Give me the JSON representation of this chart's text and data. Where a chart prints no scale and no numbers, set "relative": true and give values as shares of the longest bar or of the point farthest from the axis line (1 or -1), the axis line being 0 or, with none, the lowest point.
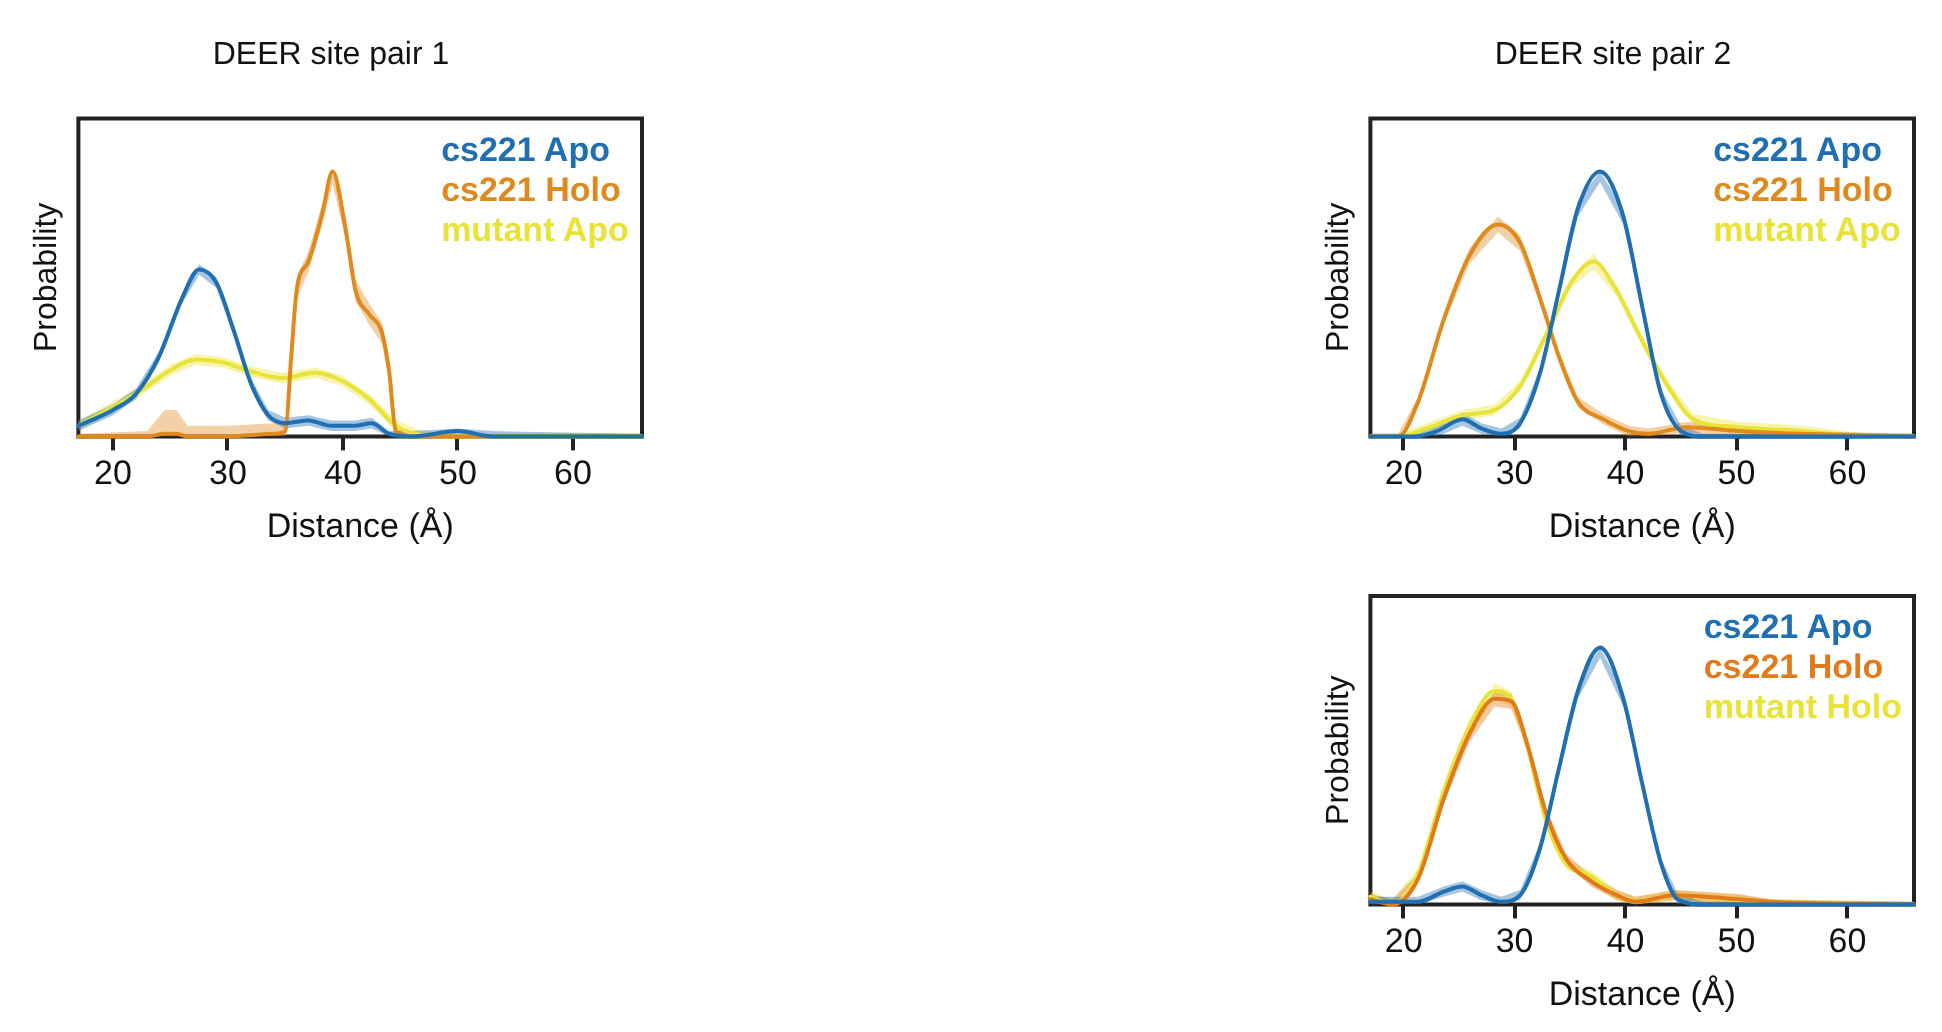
{
  "chart_data": [
    {
      "type": "line",
      "title": "DEER site pair 1",
      "xlabel": "Distance (Å)",
      "ylabel": "Probability",
      "relative": true,
      "xlim": [
        17,
        66
      ],
      "xticks": [
        20,
        30,
        40,
        50,
        60
      ],
      "grid": false,
      "legend": "top right",
      "marker": "none",
      "line_style": "solid",
      "series": [
        {
          "name": "cs221 Apo",
          "color": "#1f6fb2",
          "x": [
            17,
            20,
            22,
            24,
            26,
            27.5,
            29,
            30.5,
            32,
            33.5,
            35,
            37,
            39,
            41,
            42.5,
            44,
            46,
            50,
            53,
            66
          ],
          "values": [
            0.04,
            0.1,
            0.16,
            0.3,
            0.52,
            0.63,
            0.58,
            0.4,
            0.2,
            0.08,
            0.05,
            0.06,
            0.04,
            0.04,
            0.05,
            0.01,
            0,
            0.02,
            0,
            0
          ],
          "lower": [
            0.02,
            0.08,
            0.14,
            0.28,
            0.5,
            0.61,
            0.56,
            0.38,
            0.18,
            0.06,
            0.03,
            0.04,
            0.02,
            0.02,
            0.03,
            0,
            0,
            0.01,
            0,
            0
          ],
          "upper": [
            0.06,
            0.12,
            0.18,
            0.32,
            0.54,
            0.65,
            0.6,
            0.42,
            0.22,
            0.1,
            0.07,
            0.08,
            0.06,
            0.06,
            0.07,
            0.02,
            0.02,
            0.03,
            0.02,
            0.01
          ]
        },
        {
          "name": "cs221 Holo",
          "color": "#e08a1e",
          "x": [
            17,
            23,
            24.5,
            25.5,
            26.5,
            30,
            34,
            35,
            35.5,
            36,
            37,
            38.2,
            39.1,
            40.2,
            41.1,
            42.3,
            43.4,
            44,
            44.6,
            46,
            66
          ],
          "values": [
            0,
            0,
            0.01,
            0.01,
            0,
            0,
            0.01,
            0.02,
            0.3,
            0.56,
            0.66,
            0.84,
            1,
            0.79,
            0.55,
            0.46,
            0.39,
            0.25,
            0.02,
            0,
            0
          ],
          "lower": [
            0,
            0,
            0,
            0,
            0,
            0,
            0,
            0,
            0.26,
            0.52,
            0.62,
            0.8,
            0.95,
            0.75,
            0.51,
            0.42,
            0.35,
            0.21,
            0,
            0,
            0
          ],
          "upper": [
            0.01,
            0.02,
            0.1,
            0.1,
            0.04,
            0.04,
            0.05,
            0.05,
            0.34,
            0.6,
            0.7,
            0.88,
            1,
            0.83,
            0.59,
            0.5,
            0.43,
            0.29,
            0.04,
            0.01,
            0.01
          ]
        },
        {
          "name": "mutant Apo",
          "color": "#e8e337",
          "x": [
            17,
            22,
            25,
            27.2,
            29.5,
            32.4,
            34.7,
            37.6,
            39.9,
            42.3,
            44.6,
            46.3,
            48,
            66
          ],
          "values": [
            0.04,
            0.16,
            0.25,
            0.29,
            0.28,
            0.24,
            0.22,
            0.24,
            0.21,
            0.14,
            0.04,
            0.01,
            0,
            0
          ],
          "lower": [
            0.02,
            0.14,
            0.23,
            0.27,
            0.26,
            0.22,
            0.2,
            0.22,
            0.19,
            0.12,
            0.02,
            0,
            0,
            0
          ],
          "upper": [
            0.06,
            0.18,
            0.27,
            0.31,
            0.3,
            0.26,
            0.24,
            0.26,
            0.23,
            0.16,
            0.06,
            0.03,
            0.01,
            0.01
          ]
        }
      ]
    },
    {
      "type": "line",
      "title": "DEER site pair 2",
      "xlabel": "Distance (Å)",
      "ylabel": "Probability",
      "relative": true,
      "xlim": [
        17,
        66
      ],
      "xticks": [
        20,
        30,
        40,
        50,
        60
      ],
      "grid": false,
      "legend": "top right",
      "marker": "none",
      "line_style": "solid",
      "series": [
        {
          "name": "cs221 Apo",
          "color": "#1f6fb2",
          "x": [
            17,
            21,
            23,
            25.3,
            27,
            28.8,
            30.5,
            32.3,
            34,
            35.7,
            37.7,
            39.8,
            41.5,
            43.2,
            45,
            47,
            66
          ],
          "values": [
            0,
            0,
            0.02,
            0.065,
            0.03,
            0.01,
            0.05,
            0.24,
            0.55,
            0.86,
            1,
            0.83,
            0.49,
            0.16,
            0.02,
            0,
            0
          ],
          "lower": [
            0,
            0,
            0,
            0.04,
            0.01,
            0,
            0.03,
            0.22,
            0.53,
            0.83,
            0.96,
            0.8,
            0.47,
            0.14,
            0,
            0,
            0
          ],
          "upper": [
            0.01,
            0.01,
            0.04,
            0.09,
            0.05,
            0.03,
            0.07,
            0.26,
            0.57,
            0.89,
            1,
            0.86,
            0.51,
            0.18,
            0.04,
            0.01,
            0.01
          ]
        },
        {
          "name": "cs221 Holo",
          "color": "#e08a1e",
          "x": [
            17,
            19.5,
            21.3,
            23.6,
            25.9,
            28.5,
            30.5,
            32.3,
            34,
            35.7,
            38,
            40.3,
            42.1,
            45.5,
            50.2,
            56,
            66
          ],
          "values": [
            0,
            0,
            0.13,
            0.44,
            0.68,
            0.8,
            0.73,
            0.52,
            0.3,
            0.13,
            0.065,
            0.02,
            0.01,
            0.035,
            0.02,
            0.01,
            0
          ],
          "lower": [
            0,
            0,
            0.11,
            0.42,
            0.65,
            0.77,
            0.7,
            0.5,
            0.28,
            0.11,
            0.045,
            0,
            0,
            0.015,
            0,
            0,
            0
          ],
          "upper": [
            0.01,
            0.01,
            0.15,
            0.46,
            0.71,
            0.83,
            0.76,
            0.54,
            0.32,
            0.15,
            0.085,
            0.04,
            0.03,
            0.055,
            0.04,
            0.02,
            0.01
          ]
        },
        {
          "name": "mutant Apo",
          "color": "#e8e337",
          "x": [
            17,
            19.5,
            22.4,
            25.3,
            28.2,
            30.5,
            32.8,
            35.1,
            37.1,
            39.2,
            41.5,
            43.8,
            46.1,
            50.2,
            56,
            61.7,
            66
          ],
          "values": [
            0,
            0,
            0.035,
            0.08,
            0.1,
            0.19,
            0.38,
            0.58,
            0.66,
            0.55,
            0.36,
            0.19,
            0.065,
            0.035,
            0.02,
            0,
            0
          ],
          "lower": [
            0,
            0,
            0.015,
            0.06,
            0.08,
            0.17,
            0.36,
            0.56,
            0.63,
            0.53,
            0.34,
            0.17,
            0.045,
            0.015,
            0,
            0,
            0
          ],
          "upper": [
            0.01,
            0.01,
            0.055,
            0.1,
            0.12,
            0.21,
            0.4,
            0.6,
            0.69,
            0.57,
            0.38,
            0.21,
            0.085,
            0.055,
            0.04,
            0.01,
            0.01
          ]
        }
      ]
    },
    {
      "type": "line",
      "xlabel": "Distance (Å)",
      "ylabel": "Probability",
      "relative": true,
      "xlim": [
        17,
        66
      ],
      "xticks": [
        20,
        30,
        40,
        50,
        60
      ],
      "grid": false,
      "legend": "top right",
      "marker": "none",
      "line_style": "solid",
      "series": [
        {
          "name": "cs221 Apo",
          "color": "#1f6fb2",
          "x": [
            17,
            21.3,
            23.6,
            25.3,
            27,
            28.8,
            30.5,
            32.3,
            34,
            35.7,
            37.7,
            39.8,
            41.5,
            43.2,
            44.7,
            47,
            66
          ],
          "values": [
            0.01,
            0.01,
            0.05,
            0.07,
            0.036,
            0.01,
            0.036,
            0.22,
            0.53,
            0.83,
            1,
            0.8,
            0.47,
            0.16,
            0.02,
            0,
            0
          ],
          "lower": [
            0,
            0,
            0.03,
            0.05,
            0.016,
            0,
            0.016,
            0.2,
            0.51,
            0.8,
            0.96,
            0.77,
            0.45,
            0.14,
            0,
            0,
            0
          ],
          "upper": [
            0.03,
            0.03,
            0.07,
            0.09,
            0.056,
            0.03,
            0.056,
            0.24,
            0.55,
            0.86,
            1,
            0.83,
            0.49,
            0.18,
            0.04,
            0.01,
            0.01
          ]
        },
        {
          "name": "cs221 Holo",
          "color": "#e07a1a",
          "x": [
            17,
            19,
            21.3,
            23.6,
            25.9,
            28.2,
            29.7,
            31.1,
            32.8,
            34.6,
            36.9,
            39.2,
            40.9,
            44.4,
            50.2,
            53.1,
            66
          ],
          "values": [
            0.02,
            0,
            0.1,
            0.41,
            0.66,
            0.8,
            0.79,
            0.63,
            0.36,
            0.18,
            0.09,
            0.036,
            0.01,
            0.036,
            0.02,
            0.01,
            0
          ],
          "lower": [
            0,
            0,
            0.08,
            0.39,
            0.63,
            0.77,
            0.76,
            0.61,
            0.34,
            0.16,
            0.07,
            0.016,
            0,
            0.016,
            0,
            0,
            0
          ],
          "upper": [
            0.04,
            0.02,
            0.12,
            0.43,
            0.69,
            0.83,
            0.82,
            0.65,
            0.38,
            0.2,
            0.11,
            0.056,
            0.03,
            0.056,
            0.04,
            0.02,
            0.01
          ]
        },
        {
          "name": "mutant Holo",
          "color": "#e8e337",
          "x": [
            17,
            19,
            21.3,
            23.6,
            25.9,
            28.2,
            29.7,
            31.1,
            32.8,
            34.6,
            36.9,
            39.2,
            40.9,
            44.4,
            50.2,
            53.1,
            66
          ],
          "values": [
            0.03,
            0,
            0.12,
            0.44,
            0.69,
            0.83,
            0.8,
            0.62,
            0.33,
            0.16,
            0.11,
            0.036,
            0.01,
            0.036,
            0.017,
            0.01,
            0
          ],
          "lower": [
            0.01,
            0,
            0.1,
            0.42,
            0.66,
            0.8,
            0.77,
            0.6,
            0.31,
            0.14,
            0.09,
            0.016,
            0,
            0.016,
            0,
            0,
            0
          ],
          "upper": [
            0.05,
            0.02,
            0.14,
            0.46,
            0.72,
            0.86,
            0.83,
            0.64,
            0.35,
            0.18,
            0.13,
            0.056,
            0.03,
            0.056,
            0.037,
            0.02,
            0.01
          ]
        }
      ]
    }
  ]
}
